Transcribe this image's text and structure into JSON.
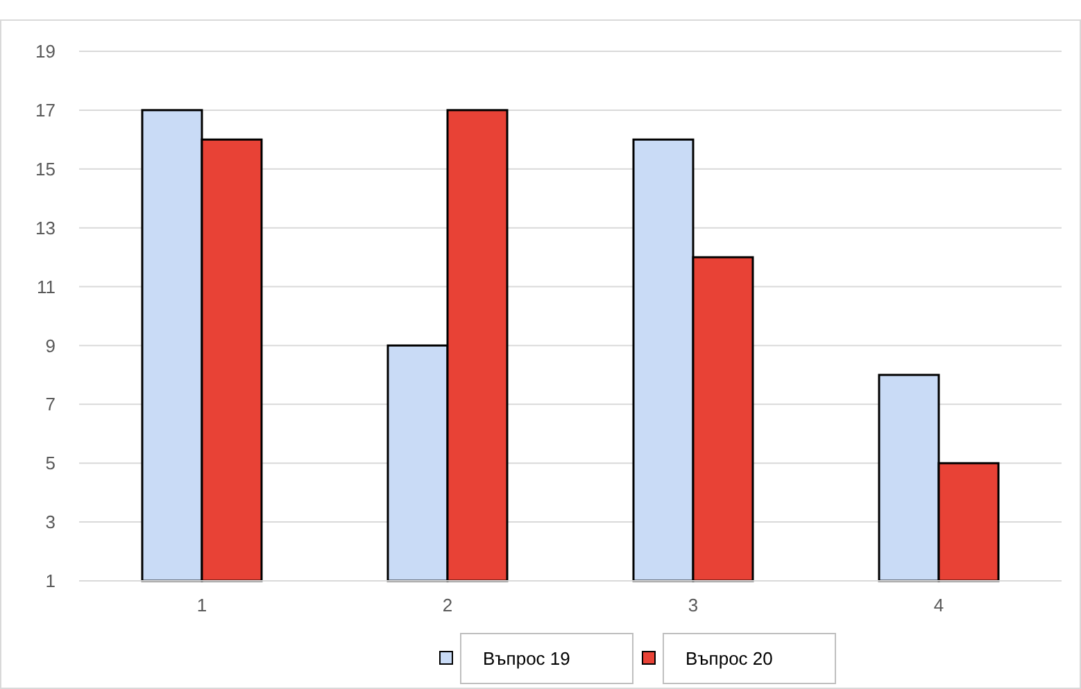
{
  "chart_data": {
    "type": "bar",
    "categories": [
      "1",
      "2",
      "3",
      "4"
    ],
    "series": [
      {
        "name": "Въпрос 19",
        "color": "#c9dbf6",
        "values": [
          17,
          9,
          16,
          8
        ]
      },
      {
        "name": "Въпрос 20",
        "color": "#e84236",
        "values": [
          16,
          17,
          12,
          5
        ]
      }
    ],
    "ylim": [
      1,
      19
    ],
    "yticks": [
      1,
      3,
      5,
      7,
      9,
      11,
      13,
      15,
      17,
      19
    ],
    "grid": "y",
    "legend": "bottom"
  }
}
